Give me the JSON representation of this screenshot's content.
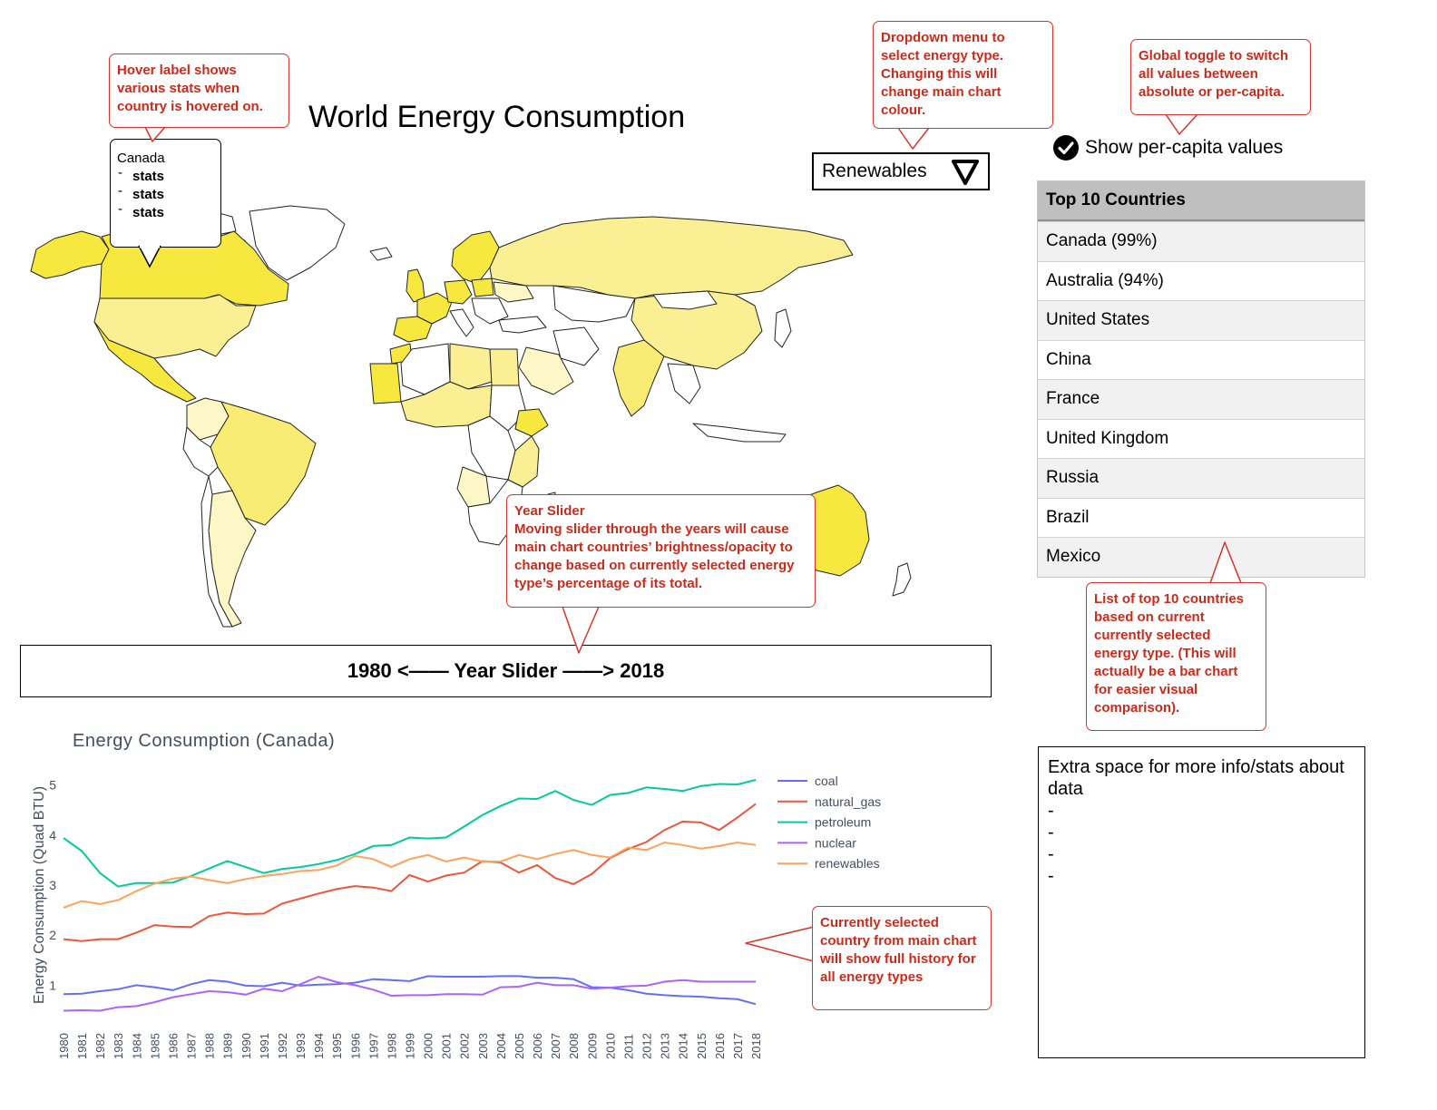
{
  "header": {
    "title": "World Energy Consumption"
  },
  "dropdown": {
    "selected": "Renewables",
    "icon": "triangle-down-icon"
  },
  "toggle": {
    "label": "Show per-capita values",
    "checked": true,
    "icon": "check-circle-icon"
  },
  "top10": {
    "header": "Top 10 Countries",
    "rows": [
      "Canada (99%)",
      "Australia (94%)",
      "United States",
      "China",
      "France",
      "United Kingdom",
      "Russia",
      "Brazil",
      "Mexico"
    ]
  },
  "hover_label": {
    "country": "Canada",
    "stats": [
      "stats",
      "stats",
      "stats"
    ]
  },
  "slider": {
    "label": "1980 <—— Year Slider ——> 2018"
  },
  "extra": {
    "title": "Extra space for more info/stats about data",
    "items": [
      "-",
      "-",
      "-",
      "-"
    ]
  },
  "annotations": {
    "hover": "Hover label shows various stats when country is hovered on.",
    "dropdown": "Dropdown menu to select energy type. Changing this will change main chart colour.",
    "toggle": "Global toggle to switch all values between absolute or per-capita.",
    "slider_title": "Year Slider",
    "slider": "Moving slider through the years will cause main chart countries’ brightness/opacity to change based on currently selected energy type’s percentage of its total.",
    "top10": "List of top 10 countries based on current currently selected energy type. (This will actually be a bar chart for easier visual comparison).",
    "chart": "Currently selected country from main chart will show full history for all energy types"
  },
  "colors": {
    "accent_red": "#d9342b",
    "map_yellow": "#f7e840",
    "map_pale": "#fdf7c8"
  },
  "chart_data": {
    "type": "line",
    "title": "Energy Consumption (Canada)",
    "ylabel": "Energy Consumption (Quad BTU)",
    "xlabel": "",
    "ylim": [
      0.3,
      5.3
    ],
    "yticks": [
      "1",
      "2",
      "3",
      "4",
      "5"
    ],
    "x": [
      "1980",
      "1981",
      "1982",
      "1983",
      "1984",
      "1985",
      "1986",
      "1987",
      "1988",
      "1989",
      "1990",
      "1991",
      "1992",
      "1993",
      "1994",
      "1995",
      "1996",
      "1997",
      "1998",
      "1999",
      "2000",
      "2001",
      "2002",
      "2003",
      "2004",
      "2005",
      "2006",
      "2007",
      "2008",
      "2009",
      "2010",
      "2011",
      "2012",
      "2013",
      "2014",
      "2015",
      "2016",
      "2017",
      "2018"
    ],
    "legend_position": "right",
    "series": [
      {
        "name": "coal",
        "color": "#636efa",
        "values": [
          0.82,
          0.83,
          0.88,
          0.92,
          1.0,
          0.96,
          0.9,
          1.02,
          1.1,
          1.07,
          0.99,
          0.98,
          1.05,
          0.99,
          1.01,
          1.02,
          1.05,
          1.12,
          1.1,
          1.08,
          1.18,
          1.17,
          1.17,
          1.17,
          1.18,
          1.18,
          1.15,
          1.15,
          1.12,
          0.96,
          0.95,
          0.9,
          0.83,
          0.8,
          0.78,
          0.77,
          0.74,
          0.72,
          0.62
        ]
      },
      {
        "name": "natural_gas",
        "color": "#ef553b",
        "values": [
          1.92,
          1.88,
          1.92,
          1.92,
          2.05,
          2.2,
          2.17,
          2.16,
          2.38,
          2.45,
          2.42,
          2.43,
          2.63,
          2.73,
          2.83,
          2.92,
          2.98,
          2.95,
          2.88,
          3.2,
          3.07,
          3.19,
          3.25,
          3.48,
          3.45,
          3.25,
          3.4,
          3.14,
          3.02,
          3.22,
          3.54,
          3.72,
          3.86,
          4.1,
          4.27,
          4.25,
          4.1,
          4.35,
          4.62
        ]
      },
      {
        "name": "petroleum",
        "color": "#00cc96",
        "values": [
          3.94,
          3.68,
          3.24,
          2.97,
          3.04,
          3.04,
          3.05,
          3.18,
          3.33,
          3.48,
          3.36,
          3.24,
          3.32,
          3.36,
          3.42,
          3.5,
          3.62,
          3.78,
          3.8,
          3.95,
          3.93,
          3.95,
          4.17,
          4.4,
          4.58,
          4.73,
          4.72,
          4.88,
          4.7,
          4.6,
          4.8,
          4.84,
          4.95,
          4.92,
          4.88,
          4.98,
          5.02,
          5.01,
          5.1
        ]
      },
      {
        "name": "nuclear",
        "color": "#ab63fa",
        "values": [
          0.49,
          0.5,
          0.49,
          0.56,
          0.58,
          0.66,
          0.76,
          0.82,
          0.88,
          0.86,
          0.81,
          0.93,
          0.88,
          1.02,
          1.17,
          1.06,
          1.0,
          0.91,
          0.79,
          0.8,
          0.8,
          0.82,
          0.82,
          0.81,
          0.96,
          0.97,
          1.05,
          1.0,
          1.0,
          0.93,
          0.95,
          0.98,
          0.99,
          1.07,
          1.1,
          1.07,
          1.07,
          1.07,
          1.07
        ]
      },
      {
        "name": "renewables",
        "color": "#ffa15a",
        "values": [
          2.55,
          2.68,
          2.62,
          2.7,
          2.88,
          3.03,
          3.13,
          3.17,
          3.1,
          3.04,
          3.12,
          3.18,
          3.22,
          3.28,
          3.3,
          3.39,
          3.58,
          3.52,
          3.36,
          3.52,
          3.6,
          3.47,
          3.55,
          3.47,
          3.47,
          3.6,
          3.52,
          3.62,
          3.7,
          3.6,
          3.55,
          3.75,
          3.7,
          3.85,
          3.8,
          3.73,
          3.78,
          3.85,
          3.8
        ]
      }
    ]
  }
}
